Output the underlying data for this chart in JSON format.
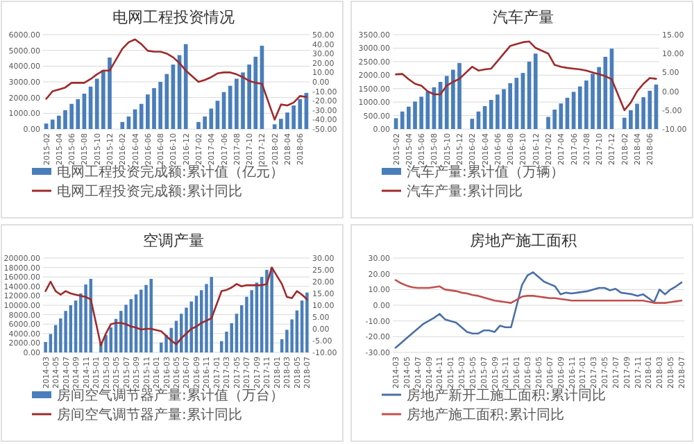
{
  "chart_data": [
    {
      "type": "bar",
      "title": "电网工程投资情况",
      "grid": "y",
      "legend": "bottom",
      "categories": [
        "2015-02",
        null,
        "2015-04",
        null,
        "2015-06",
        null,
        "2015-08",
        null,
        "2015-10",
        null,
        "2015-12",
        null,
        "2016-02",
        null,
        "2016-04",
        null,
        "2016-06",
        null,
        "2016-08",
        null,
        "2016-10",
        null,
        "2016-12",
        null,
        "2017-02",
        null,
        "2017-04",
        null,
        "2017-06",
        null,
        "2017-08",
        null,
        "2017-10",
        null,
        "2017-12",
        null,
        "2018-02",
        null,
        "2018-04",
        null,
        "2018-06",
        null
      ],
      "series": [
        {
          "name": "电网工程投资完成额:累计值（亿元）",
          "color": "#4a7ebb",
          "values": [
            350,
            600,
            850,
            1200,
            1600,
            1900,
            2250,
            2700,
            3200,
            3750,
            4550,
            null,
            450,
            800,
            1250,
            1600,
            2200,
            2600,
            3000,
            3500,
            4100,
            4700,
            5400,
            null,
            450,
            800,
            1300,
            1800,
            2350,
            2750,
            3200,
            3600,
            4100,
            4600,
            5300,
            null,
            300,
            650,
            1050,
            1500,
            1900,
            2300
          ]
        },
        {
          "name": "电网工程投资完成额:累计同比",
          "type": "line",
          "axis": "y2",
          "color": "#9e2a2b",
          "values": [
            -18,
            -10,
            -8,
            -6,
            -1,
            -1,
            -1,
            3,
            8,
            12,
            12,
            null,
            35,
            42,
            45,
            40,
            33,
            32,
            32,
            30,
            26,
            20,
            12,
            null,
            0,
            2,
            5,
            9,
            10,
            10,
            8,
            5,
            1,
            -1,
            -2,
            null,
            -40,
            -24,
            -25,
            -22,
            -15,
            -16
          ]
        }
      ],
      "ylim": [
        0,
        6000
      ],
      "yticks": [
        {
          "value": 0,
          "label": "0.00"
        },
        {
          "value": 1000,
          "label": "1000.00"
        },
        {
          "value": 2000,
          "label": "2000.00"
        },
        {
          "value": 3000,
          "label": "3000.00"
        },
        {
          "value": 4000,
          "label": "4000.00"
        },
        {
          "value": 5000,
          "label": "5000.00"
        },
        {
          "value": 6000,
          "label": "6000.00"
        }
      ],
      "y2lim": [
        -50,
        50
      ],
      "y2ticks": [
        {
          "value": -50,
          "label": "-50.00"
        },
        {
          "value": -40,
          "label": "-40.00"
        },
        {
          "value": -30,
          "label": "-30.00"
        },
        {
          "value": -20,
          "label": "-20.00"
        },
        {
          "value": -10,
          "label": "-10.00"
        },
        {
          "value": 0,
          "label": "0.00"
        },
        {
          "value": 10,
          "label": "10.00"
        },
        {
          "value": 20,
          "label": "20.00"
        },
        {
          "value": 30,
          "label": "30.00"
        },
        {
          "value": 40,
          "label": "40.00"
        },
        {
          "value": 50,
          "label": "50.00"
        }
      ]
    },
    {
      "type": "bar",
      "title": "汽车产量",
      "grid": "y",
      "legend": "bottom",
      "categories": [
        "2015-02",
        null,
        "2015-04",
        null,
        "2015-06",
        null,
        "2015-08",
        null,
        "2015-10",
        null,
        "2015-12",
        null,
        "2016-02",
        null,
        "2016-04",
        null,
        "2016-06",
        null,
        "2016-08",
        null,
        "2016-10",
        null,
        "2016-12",
        null,
        "2017-02",
        null,
        "2017-04",
        null,
        "2017-06",
        null,
        "2017-08",
        null,
        "2017-10",
        null,
        "2017-12",
        null,
        "2018-02",
        null,
        "2018-04",
        null,
        "2018-06",
        null
      ],
      "series": [
        {
          "name": "汽车产量:累计值（万辆）",
          "color": "#4a7ebb",
          "values": [
            400,
            650,
            830,
            1020,
            1200,
            1400,
            1550,
            1750,
            1970,
            2200,
            2450,
            null,
            380,
            650,
            850,
            1080,
            1280,
            1480,
            1700,
            1900,
            2080,
            2500,
            2800,
            null,
            450,
            720,
            950,
            1160,
            1380,
            1580,
            1800,
            2050,
            2300,
            2680,
            2980,
            null,
            420,
            700,
            940,
            1180,
            1420,
            1650
          ]
        },
        {
          "name": "汽车产量:累计同比",
          "type": "line",
          "axis": "y2",
          "color": "#9e2a2b",
          "values": [
            4.5,
            4.6,
            3.2,
            2,
            1.5,
            0,
            -0.8,
            -0.8,
            1.5,
            2.5,
            3.3,
            null,
            6.5,
            5.5,
            5.8,
            6,
            8,
            10,
            12,
            12.5,
            13,
            13.2,
            11.5,
            null,
            10,
            7,
            6.5,
            6.2,
            6,
            5.8,
            5.5,
            5,
            4.5,
            4,
            3.2,
            null,
            -5,
            -3,
            0,
            2,
            3.5,
            3.3
          ]
        }
      ],
      "ylim": [
        0,
        3500
      ],
      "yticks": [
        {
          "value": 0,
          "label": "0.00"
        },
        {
          "value": 500,
          "label": "500.00"
        },
        {
          "value": 1000,
          "label": "1000.00"
        },
        {
          "value": 1500,
          "label": "1500.00"
        },
        {
          "value": 2000,
          "label": "2000.00"
        },
        {
          "value": 2500,
          "label": "2500.00"
        },
        {
          "value": 3000,
          "label": "3000.00"
        },
        {
          "value": 3500,
          "label": "3500.00"
        }
      ],
      "y2lim": [
        -10,
        15
      ],
      "y2ticks": [
        {
          "value": -10,
          "label": "-10.00"
        },
        {
          "value": -5,
          "label": "-5.00"
        },
        {
          "value": 0,
          "label": "0.00"
        },
        {
          "value": 5,
          "label": "5.00"
        },
        {
          "value": 10,
          "label": "10.00"
        },
        {
          "value": 15,
          "label": "15.00"
        }
      ]
    },
    {
      "type": "bar",
      "title": "空调产量",
      "grid": "y",
      "legend": "bottom",
      "categories": [
        "2014-03",
        null,
        "2014-05",
        null,
        "2014-07",
        null,
        "2014-09",
        null,
        "2014-11",
        null,
        "2015-01",
        null,
        "2015-03",
        null,
        "2015-05",
        null,
        "2015-07",
        null,
        "2015-09",
        null,
        "2015-11",
        null,
        "2016-01",
        null,
        "2016-03",
        null,
        "2016-05",
        null,
        "2016-07",
        null,
        "2016-09",
        null,
        "2016-11",
        null,
        "2017-01",
        null,
        "2017-03",
        null,
        "2017-05",
        null,
        "2017-07",
        null,
        "2017-09",
        null,
        "2017-11",
        null,
        "2018-01",
        null,
        "2018-03",
        null,
        "2018-05",
        null,
        "2018-07"
      ],
      "series": [
        {
          "name": "房间空气调节器产量:累计值（万台）",
          "color": "#4a7ebb",
          "values": [
            2200,
            3900,
            5800,
            7200,
            8800,
            10000,
            11000,
            12500,
            14400,
            15600,
            null,
            1900,
            3700,
            5300,
            7100,
            8800,
            10100,
            11300,
            12300,
            13300,
            14300,
            15600,
            null,
            2100,
            3700,
            5200,
            6700,
            8200,
            9500,
            10800,
            12000,
            13200,
            14500,
            16000,
            null,
            2400,
            4400,
            6200,
            8200,
            10000,
            11800,
            13200,
            14800,
            16000,
            17500,
            18000,
            null,
            2800,
            4800,
            7000,
            8900,
            11000,
            12700
          ]
        },
        {
          "name": "房间空气调节器产量:累计同比",
          "type": "line",
          "axis": "y2",
          "color": "#9e2a2b",
          "values": [
            16,
            20,
            16,
            14.5,
            16,
            15,
            14.5,
            14,
            13.5,
            12.5,
            null,
            -7,
            -2,
            2,
            2.5,
            2.5,
            2,
            1,
            0.5,
            -0.3,
            0,
            0,
            null,
            -1,
            -3,
            -5,
            -6.5,
            -4,
            -2,
            0,
            1,
            2.5,
            3.5,
            4.5,
            null,
            16,
            16.5,
            17.5,
            19,
            18,
            18.5,
            18.5,
            18.5,
            18.5,
            19,
            26,
            null,
            19,
            13.5,
            13,
            16,
            14.5,
            12.5
          ]
        }
      ],
      "ylim": [
        0,
        20000
      ],
      "yticks": [
        {
          "value": 0,
          "label": "0.00"
        },
        {
          "value": 2000,
          "label": "2000.00"
        },
        {
          "value": 4000,
          "label": "4000.00"
        },
        {
          "value": 6000,
          "label": "6000.00"
        },
        {
          "value": 8000,
          "label": "8000.00"
        },
        {
          "value": 10000,
          "label": "10000.00"
        },
        {
          "value": 12000,
          "label": "12000.00"
        },
        {
          "value": 14000,
          "label": "14000.00"
        },
        {
          "value": 16000,
          "label": "16000.00"
        },
        {
          "value": 18000,
          "label": "18000.00"
        },
        {
          "value": 20000,
          "label": "20000.00"
        }
      ],
      "y2lim": [
        -10,
        30
      ],
      "y2ticks": [
        {
          "value": -10,
          "label": "-10.00"
        },
        {
          "value": -5,
          "label": "-5.00"
        },
        {
          "value": 0,
          "label": "0.00"
        },
        {
          "value": 5,
          "label": "5.00"
        },
        {
          "value": 10,
          "label": "10.00"
        },
        {
          "value": 15,
          "label": "15.00"
        },
        {
          "value": 20,
          "label": "20.00"
        },
        {
          "value": 25,
          "label": "25.00"
        },
        {
          "value": 30,
          "label": "30.00"
        }
      ]
    },
    {
      "type": "line",
      "title": "房地产施工面积",
      "grid": "y",
      "legend": "bottom",
      "categories": [
        "2014-03",
        null,
        "2014-05",
        null,
        "2014-07",
        null,
        "2014-09",
        null,
        "2014-11",
        null,
        "2015-01",
        null,
        "2015-03",
        null,
        "2015-05",
        null,
        "2015-07",
        null,
        "2015-09",
        null,
        "2015-11",
        null,
        "2016-01",
        null,
        "2016-03",
        null,
        "2016-05",
        null,
        "2016-07",
        null,
        "2016-09",
        null,
        "2016-11",
        null,
        "2017-01",
        null,
        "2017-03",
        null,
        "2017-05",
        null,
        "2017-07",
        null,
        "2017-09",
        null,
        "2017-11",
        null,
        "2018-01",
        null,
        "2018-03",
        null,
        "2018-05",
        null,
        "2018-07"
      ],
      "series": [
        {
          "name": "房地产新开工施工面积:累计同比",
          "color": "#4a6fa5",
          "values": [
            -27,
            -24,
            -21,
            -18,
            -15,
            -12,
            -10,
            -8,
            -5.5,
            -9,
            null,
            -11,
            -14,
            -17,
            -18,
            -18,
            -16,
            -16,
            -17,
            -13,
            -14,
            -14,
            null,
            13,
            19,
            21,
            18,
            15,
            13.5,
            12,
            7,
            8,
            7.5,
            8,
            null,
            9,
            10,
            11,
            11,
            9.5,
            10.5,
            8,
            7.5,
            7,
            6,
            7,
            null,
            2,
            10,
            7,
            10,
            12,
            14.5
          ]
        },
        {
          "name": "房地产施工面积:累计同比",
          "color": "#c0504d",
          "values": [
            16,
            14,
            12.5,
            11.5,
            11,
            11,
            11,
            11.5,
            12,
            10,
            null,
            9,
            8,
            7.5,
            6.5,
            6,
            5,
            4,
            3,
            2.5,
            2,
            1.5,
            null,
            5.5,
            6,
            6,
            5.5,
            5,
            4.5,
            4.5,
            4,
            3.5,
            3,
            3,
            null,
            3,
            3,
            3,
            3,
            3,
            3,
            3,
            3,
            3,
            3,
            3,
            null,
            1.5,
            1.5,
            1.5,
            2,
            2.5,
            3
          ]
        }
      ],
      "ylim": [
        -30,
        30
      ],
      "yticks": [
        {
          "value": -30,
          "label": "-30.00"
        },
        {
          "value": -20,
          "label": "-20.00"
        },
        {
          "value": -10,
          "label": "-10.00"
        },
        {
          "value": 0,
          "label": "0.00"
        },
        {
          "value": 10,
          "label": "10.00"
        },
        {
          "value": 20,
          "label": "20.00"
        },
        {
          "value": 30,
          "label": "30.00"
        }
      ]
    }
  ]
}
